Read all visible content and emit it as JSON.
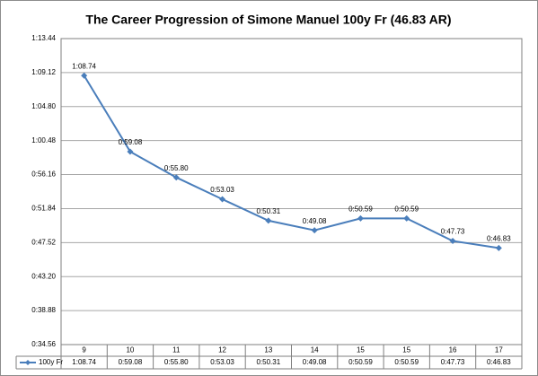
{
  "chart_data": {
    "type": "line",
    "title": "The Career Progression of Simone Manuel 100y Fr (46.83 AR)",
    "categories": [
      "9",
      "10",
      "11",
      "12",
      "13",
      "14",
      "15",
      "15",
      "16",
      "17"
    ],
    "series": [
      {
        "name": "100y Fr",
        "color": "#4a7ebb",
        "values": [
          68.74,
          59.08,
          55.8,
          53.03,
          50.31,
          49.08,
          50.59,
          50.59,
          47.73,
          46.83
        ],
        "value_labels": [
          "1:08.74",
          "0:59.08",
          "0:55.80",
          "0:53.03",
          "0:50.31",
          "0:49.08",
          "0:50.59",
          "0:50.59",
          "0:47.73",
          "0:46.83"
        ]
      }
    ],
    "ylim": [
      34.56,
      73.44
    ],
    "yticks": [
      {
        "value": 34.56,
        "label": "0:34.56"
      },
      {
        "value": 38.88,
        "label": "0:38.88"
      },
      {
        "value": 43.2,
        "label": "0:43.20"
      },
      {
        "value": 47.52,
        "label": "0:47.52"
      },
      {
        "value": 51.84,
        "label": "0:51.84"
      },
      {
        "value": 56.16,
        "label": "0:56.16"
      },
      {
        "value": 60.48,
        "label": "1:00.48"
      },
      {
        "value": 64.8,
        "label": "1:04.80"
      },
      {
        "value": 69.12,
        "label": "1:09.12"
      },
      {
        "value": 73.44,
        "label": "1:13.44"
      }
    ],
    "grid": true
  }
}
